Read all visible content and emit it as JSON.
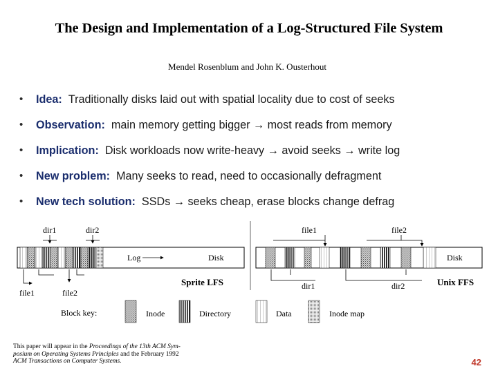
{
  "paper": {
    "title": "The Design and Implementation of a Log-Structured File System",
    "authors": "Mendel Rosenblum and John K. Ousterhout"
  },
  "bullets": [
    {
      "term": "Idea:",
      "text": "Traditionally disks laid out with spatial locality due to cost of seeks"
    },
    {
      "term": "Observation:",
      "text": "main memory getting bigger → most reads from memory"
    },
    {
      "term": "Implication:",
      "text": "Disk workloads now write-heavy → avoid seeks → write log"
    },
    {
      "term": "New problem:",
      "text": "Many seeks to read, need to occasionally defragment"
    },
    {
      "term": "New tech solution:",
      "text": "SSDs → seeks cheap, erase blocks change defrag"
    }
  ],
  "figure": {
    "lfs": {
      "dir1": "dir1",
      "dir2": "dir2",
      "log": "Log",
      "disk": "Disk",
      "file1": "file1",
      "file2": "file2",
      "name": "Sprite LFS"
    },
    "ffs": {
      "file1": "file1",
      "file2": "file2",
      "disk": "Disk",
      "dir1": "dir1",
      "dir2": "dir2",
      "name": "Unix FFS"
    },
    "key": {
      "label": "Block key:",
      "inode": "Inode",
      "directory": "Directory",
      "data": "Data",
      "inode_map": "Inode map"
    }
  },
  "footnote": {
    "l1_a": "This paper will appear in the ",
    "l1_b": "Proceedings of the 13th ACM Sym-",
    "l2_a": "posium on Operating Systems Principles",
    "l2_b": " and the February 1992",
    "l3": "ACM Transactions on Computer Systems."
  },
  "slide_number": "42"
}
